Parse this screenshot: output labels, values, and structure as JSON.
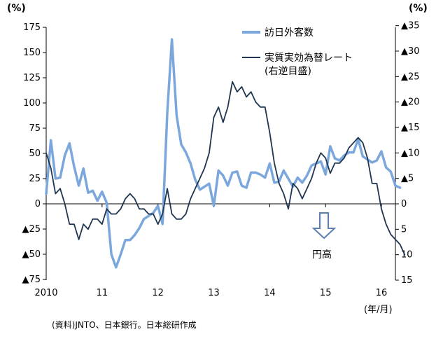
{
  "chart_data": {
    "type": "line",
    "unit_left": "(%)",
    "unit_right": "(%)",
    "date_unit": "(年/月)",
    "source": "(資料)JNTO、日本銀行。日本総研作成",
    "annotation": "円高",
    "left_axis": {
      "range": [
        -75,
        175
      ],
      "ticks": [
        175,
        150,
        125,
        100,
        75,
        50,
        25,
        0,
        -25,
        -50,
        -75
      ],
      "tick_labels": [
        "175",
        "150",
        "125",
        "100",
        "75",
        "50",
        "25",
        "0",
        "▲25",
        "▲50",
        "▲75"
      ]
    },
    "right_axis": {
      "inverted": true,
      "range": [
        15,
        -35
      ],
      "ticks": [
        -35,
        -30,
        -25,
        -20,
        -15,
        -10,
        -5,
        0,
        5,
        10,
        15
      ],
      "tick_labels": [
        "▲35",
        "▲30",
        "▲25",
        "▲20",
        "▲15",
        "▲10",
        "▲5",
        "0",
        "5",
        "10",
        "15"
      ]
    },
    "x_axis": {
      "labels": [
        "2010",
        "11",
        "12",
        "13",
        "14",
        "15",
        "16"
      ],
      "label_positions": [
        "2010-01",
        "2011-01",
        "2012-01",
        "2013-01",
        "2014-01",
        "2015-01",
        "2016-01"
      ],
      "range": [
        "2010-01",
        "2016-04"
      ]
    },
    "series": [
      {
        "name": "訪日外客数",
        "axis": "left",
        "color": "#7BA7DC",
        "values": [
          [
            "2010-01",
            10
          ],
          [
            "2010-02",
            63
          ],
          [
            "2010-03",
            25
          ],
          [
            "2010-04",
            26
          ],
          [
            "2010-05",
            48
          ],
          [
            "2010-06",
            60
          ],
          [
            "2010-07",
            37
          ],
          [
            "2010-08",
            18
          ],
          [
            "2010-09",
            35
          ],
          [
            "2010-10",
            11
          ],
          [
            "2010-11",
            13
          ],
          [
            "2010-12",
            3
          ],
          [
            "2011-01",
            12
          ],
          [
            "2011-02",
            1
          ],
          [
            "2011-03",
            -50
          ],
          [
            "2011-04",
            -63
          ],
          [
            "2011-05",
            -50
          ],
          [
            "2011-06",
            -36
          ],
          [
            "2011-07",
            -36
          ],
          [
            "2011-08",
            -31
          ],
          [
            "2011-09",
            -24
          ],
          [
            "2011-10",
            -15
          ],
          [
            "2011-11",
            -12
          ],
          [
            "2011-12",
            -9
          ],
          [
            "2012-01",
            -2
          ],
          [
            "2012-02",
            -20
          ],
          [
            "2012-03",
            90
          ],
          [
            "2012-04",
            163
          ],
          [
            "2012-05",
            88
          ],
          [
            "2012-06",
            59
          ],
          [
            "2012-07",
            51
          ],
          [
            "2012-08",
            40
          ],
          [
            "2012-09",
            24
          ],
          [
            "2012-10",
            14
          ],
          [
            "2012-11",
            17
          ],
          [
            "2012-12",
            20
          ],
          [
            "2013-01",
            -2
          ],
          [
            "2013-02",
            33
          ],
          [
            "2013-03",
            28
          ],
          [
            "2013-04",
            18
          ],
          [
            "2013-05",
            31
          ],
          [
            "2013-06",
            32
          ],
          [
            "2013-07",
            18
          ],
          [
            "2013-08",
            16
          ],
          [
            "2013-09",
            31
          ],
          [
            "2013-10",
            31
          ],
          [
            "2013-11",
            29
          ],
          [
            "2013-12",
            26
          ],
          [
            "2014-01",
            40
          ],
          [
            "2014-02",
            21
          ],
          [
            "2014-03",
            22
          ],
          [
            "2014-04",
            33
          ],
          [
            "2014-05",
            25
          ],
          [
            "2014-06",
            17
          ],
          [
            "2014-07",
            26
          ],
          [
            "2014-08",
            21
          ],
          [
            "2014-09",
            28
          ],
          [
            "2014-10",
            38
          ],
          [
            "2014-11",
            40
          ],
          [
            "2014-12",
            42
          ],
          [
            "2015-01",
            29
          ],
          [
            "2015-02",
            57
          ],
          [
            "2015-03",
            45
          ],
          [
            "2015-04",
            43
          ],
          [
            "2015-05",
            48
          ],
          [
            "2015-06",
            51
          ],
          [
            "2015-07",
            51
          ],
          [
            "2015-08",
            64
          ],
          [
            "2015-09",
            47
          ],
          [
            "2015-10",
            44
          ],
          [
            "2015-11",
            41
          ],
          [
            "2015-12",
            43
          ],
          [
            "2016-01",
            52
          ],
          [
            "2016-02",
            36
          ],
          [
            "2016-03",
            32
          ],
          [
            "2016-04",
            18
          ],
          [
            "2016-05",
            16
          ]
        ]
      },
      {
        "name": "実質実効為替レート",
        "name_note": "(右逆目盛)",
        "axis": "right",
        "color": "#1F3550",
        "values": [
          [
            "2010-01",
            -10
          ],
          [
            "2010-02",
            -7
          ],
          [
            "2010-03",
            -2
          ],
          [
            "2010-04",
            -3
          ],
          [
            "2010-05",
            0
          ],
          [
            "2010-06",
            4
          ],
          [
            "2010-07",
            4
          ],
          [
            "2010-08",
            7
          ],
          [
            "2010-09",
            4
          ],
          [
            "2010-10",
            5
          ],
          [
            "2010-11",
            3
          ],
          [
            "2010-12",
            3
          ],
          [
            "2011-01",
            4
          ],
          [
            "2011-02",
            1
          ],
          [
            "2011-03",
            2
          ],
          [
            "2011-04",
            2
          ],
          [
            "2011-05",
            1
          ],
          [
            "2011-06",
            -1
          ],
          [
            "2011-07",
            -2
          ],
          [
            "2011-08",
            -1
          ],
          [
            "2011-09",
            1
          ],
          [
            "2011-10",
            1
          ],
          [
            "2011-11",
            2
          ],
          [
            "2011-12",
            2
          ],
          [
            "2012-01",
            4
          ],
          [
            "2012-02",
            2
          ],
          [
            "2012-03",
            -3
          ],
          [
            "2012-04",
            2
          ],
          [
            "2012-05",
            3
          ],
          [
            "2012-06",
            3
          ],
          [
            "2012-07",
            2
          ],
          [
            "2012-08",
            -1
          ],
          [
            "2012-09",
            -3
          ],
          [
            "2012-10",
            -5
          ],
          [
            "2012-11",
            -7
          ],
          [
            "2012-12",
            -10
          ],
          [
            "2013-01",
            -17
          ],
          [
            "2013-02",
            -19
          ],
          [
            "2013-03",
            -16
          ],
          [
            "2013-04",
            -19
          ],
          [
            "2013-05",
            -24
          ],
          [
            "2013-06",
            -22
          ],
          [
            "2013-07",
            -23
          ],
          [
            "2013-08",
            -21
          ],
          [
            "2013-09",
            -22
          ],
          [
            "2013-10",
            -20
          ],
          [
            "2013-11",
            -19
          ],
          [
            "2013-12",
            -19
          ],
          [
            "2014-01",
            -14
          ],
          [
            "2014-02",
            -8
          ],
          [
            "2014-03",
            -4
          ],
          [
            "2014-04",
            -2
          ],
          [
            "2014-05",
            1
          ],
          [
            "2014-06",
            -4
          ],
          [
            "2014-07",
            -3
          ],
          [
            "2014-08",
            -1
          ],
          [
            "2014-09",
            -3
          ],
          [
            "2014-10",
            -5
          ],
          [
            "2014-11",
            -8
          ],
          [
            "2014-12",
            -10
          ],
          [
            "2015-01",
            -9
          ],
          [
            "2015-02",
            -6
          ],
          [
            "2015-03",
            -8
          ],
          [
            "2015-04",
            -8
          ],
          [
            "2015-05",
            -9
          ],
          [
            "2015-06",
            -11
          ],
          [
            "2015-07",
            -12
          ],
          [
            "2015-08",
            -13
          ],
          [
            "2015-09",
            -12
          ],
          [
            "2015-10",
            -9
          ],
          [
            "2015-11",
            -4
          ],
          [
            "2015-12",
            -4
          ],
          [
            "2016-01",
            1
          ],
          [
            "2016-02",
            4
          ],
          [
            "2016-03",
            6
          ],
          [
            "2016-04",
            7
          ],
          [
            "2016-05",
            8
          ],
          [
            "2016-06",
            10
          ]
        ]
      }
    ],
    "legend": {
      "placement": "top-right"
    }
  }
}
